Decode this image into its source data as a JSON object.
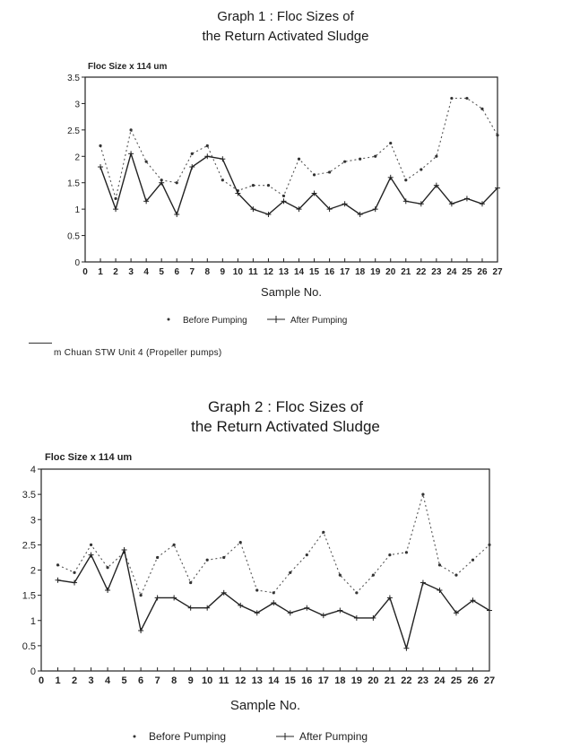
{
  "charts": [
    {
      "title_line1": "Graph 1   :   Floc Sizes of",
      "title_line2": "the Return Activated Sludge",
      "caption": "m Chuan STW Unit 4 (Propeller pumps)"
    },
    {
      "title_line1": "Graph 2   :   Floc Sizes of",
      "title_line2": "the Return Activated Sludge",
      "caption": ""
    }
  ],
  "chart_data": [
    {
      "type": "line",
      "title": "Graph 1 : Floc Sizes of the Return Activated Sludge",
      "ylabel": "Floc Size  x 114 um",
      "xlabel": "Sample No.",
      "x": [
        1,
        2,
        3,
        4,
        5,
        6,
        7,
        8,
        9,
        10,
        11,
        12,
        13,
        14,
        15,
        16,
        17,
        18,
        19,
        20,
        21,
        22,
        23,
        24,
        25,
        26,
        27
      ],
      "xlim": [
        0,
        27
      ],
      "ylim": [
        0,
        3.5
      ],
      "yticks": [
        0,
        0.5,
        1,
        1.5,
        2,
        2.5,
        3,
        3.5
      ],
      "ytick_labels": [
        "0",
        "0.5",
        "1",
        "1.5",
        "2",
        "2.5",
        "3",
        "3.5"
      ],
      "xtick_labels": [
        "0",
        "1",
        "2",
        "3",
        "4",
        "5",
        "6",
        "7",
        "8",
        "9",
        "10",
        "11",
        "12",
        "13",
        "14",
        "15",
        "16",
        "17",
        "18",
        "19",
        "20",
        "21",
        "22",
        "23",
        "24",
        "25",
        "26",
        "27"
      ],
      "legend_position": "bottom",
      "series": [
        {
          "name": "Before Pumping",
          "style": "dotted",
          "marker": "dot",
          "values": [
            2.2,
            1.2,
            2.5,
            1.9,
            1.55,
            1.5,
            2.05,
            2.2,
            1.55,
            1.35,
            1.45,
            1.45,
            1.25,
            1.95,
            1.65,
            1.7,
            1.9,
            1.95,
            2.0,
            2.25,
            1.55,
            1.75,
            2.0,
            3.1,
            3.1,
            2.9,
            2.4
          ]
        },
        {
          "name": "After Pumping",
          "style": "solid",
          "marker": "plus",
          "values": [
            1.8,
            1.0,
            2.05,
            1.15,
            1.5,
            0.9,
            1.8,
            2.0,
            1.95,
            1.3,
            1.0,
            0.9,
            1.15,
            1.0,
            1.3,
            1.0,
            1.1,
            0.9,
            1.0,
            1.6,
            1.15,
            1.1,
            1.45,
            1.1,
            1.2,
            1.1,
            1.4
          ]
        }
      ]
    },
    {
      "type": "line",
      "title": "Graph 2 : Floc Sizes of the Return Activated Sludge",
      "ylabel": "Floc Size  x 114 um",
      "xlabel": "Sample No.",
      "x": [
        1,
        2,
        3,
        4,
        5,
        6,
        7,
        8,
        9,
        10,
        11,
        12,
        13,
        14,
        15,
        16,
        17,
        18,
        19,
        20,
        21,
        22,
        23,
        24,
        25,
        26,
        27
      ],
      "xlim": [
        0,
        27
      ],
      "ylim": [
        0,
        4
      ],
      "yticks": [
        0,
        0.5,
        1,
        1.5,
        2,
        2.5,
        3,
        3.5,
        4
      ],
      "ytick_labels": [
        "0",
        "0.5",
        "1",
        "1.5",
        "2",
        "2.5",
        "3",
        "3.5",
        "4"
      ],
      "xtick_labels": [
        "0",
        "1",
        "2",
        "3",
        "4",
        "5",
        "6",
        "7",
        "8",
        "9",
        "10",
        "11",
        "12",
        "13",
        "14",
        "15",
        "16",
        "17",
        "18",
        "19",
        "20",
        "21",
        "22",
        "23",
        "24",
        "25",
        "26",
        "27"
      ],
      "legend_position": "bottom",
      "series": [
        {
          "name": "Before Pumping",
          "style": "dotted",
          "marker": "dot",
          "values": [
            2.1,
            1.95,
            2.5,
            2.05,
            2.35,
            1.5,
            2.25,
            2.5,
            1.75,
            2.2,
            2.25,
            2.55,
            1.6,
            1.55,
            1.95,
            2.3,
            2.75,
            1.9,
            1.55,
            1.9,
            2.3,
            2.35,
            3.5,
            2.1,
            1.9,
            2.2,
            2.5
          ]
        },
        {
          "name": "After Pumping",
          "style": "solid",
          "marker": "plus",
          "values": [
            1.8,
            1.75,
            2.3,
            1.6,
            2.4,
            0.8,
            1.45,
            1.45,
            1.25,
            1.25,
            1.55,
            1.3,
            1.15,
            1.35,
            1.15,
            1.25,
            1.1,
            1.2,
            1.05,
            1.05,
            1.45,
            0.45,
            1.75,
            1.6,
            1.15,
            1.4,
            1.2
          ]
        }
      ]
    }
  ]
}
